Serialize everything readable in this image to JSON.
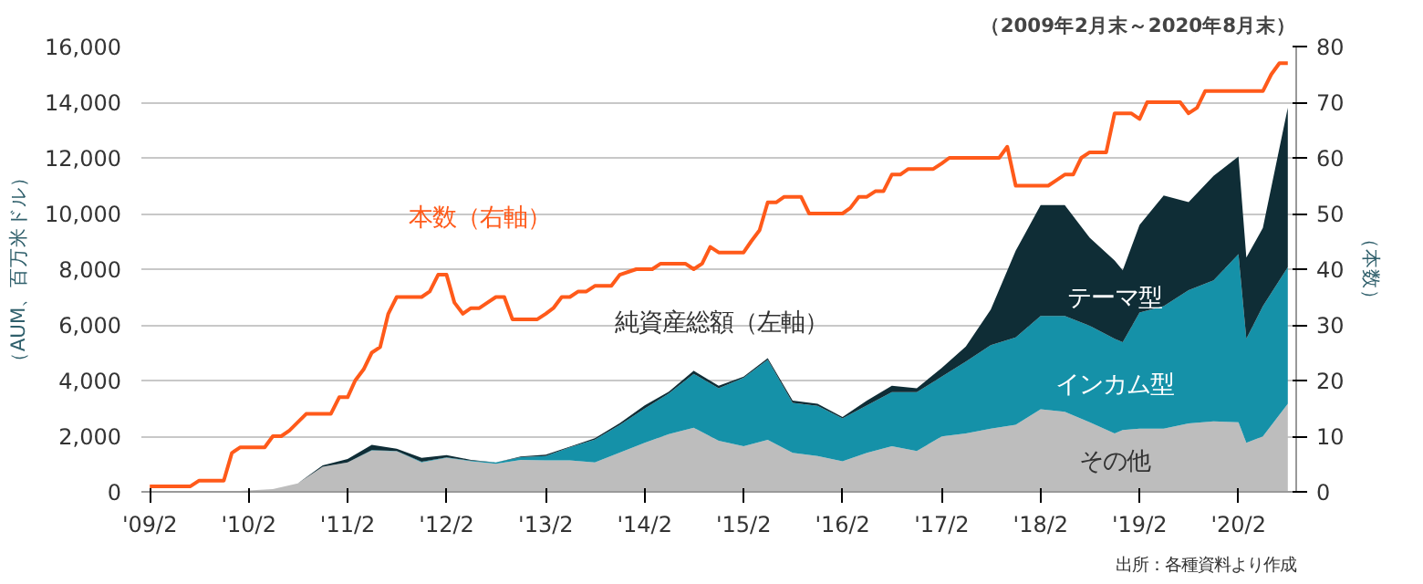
{
  "chart_data": {
    "type": "area",
    "stacked": true,
    "title": "（2009年2月末～2020年8月末）",
    "ylabel": "（AUM、百万米ドル）",
    "y2label": "（本数）",
    "annotations": [
      "純資産総額（左軸）",
      "出所：各種資料より作成"
    ],
    "x": [
      "2009-02",
      "2009-05",
      "2009-08",
      "2009-11",
      "2010-02",
      "2010-05",
      "2010-08",
      "2010-11",
      "2011-02",
      "2011-05",
      "2011-08",
      "2011-11",
      "2012-02",
      "2012-05",
      "2012-08",
      "2012-11",
      "2013-02",
      "2013-05",
      "2013-08",
      "2013-11",
      "2014-02",
      "2014-05",
      "2014-08",
      "2014-11",
      "2015-02",
      "2015-05",
      "2015-08",
      "2015-11",
      "2016-02",
      "2016-05",
      "2016-08",
      "2016-11",
      "2017-02",
      "2017-05",
      "2017-08",
      "2017-11",
      "2018-02",
      "2018-05",
      "2018-08",
      "2018-11",
      "2018-12",
      "2019-02",
      "2019-05",
      "2019-08",
      "2019-11",
      "2020-02",
      "2020-03",
      "2020-05",
      "2020-08"
    ],
    "series": [
      {
        "name": "その他",
        "color": "#bdbdbd",
        "values": [
          0,
          0,
          0,
          0,
          50,
          100,
          300,
          900,
          1060,
          1480,
          1460,
          1060,
          1220,
          1100,
          1010,
          1150,
          1130,
          1130,
          1060,
          1410,
          1760,
          2070,
          2300,
          1840,
          1640,
          1870,
          1400,
          1290,
          1100,
          1400,
          1640,
          1470,
          1990,
          2100,
          2270,
          2410,
          2970,
          2880,
          2500,
          2100,
          2220,
          2270,
          2270,
          2460,
          2530,
          2500,
          1760,
          1990,
          3160
        ]
      },
      {
        "name": "インカム型",
        "color": "#1591a8",
        "values": [
          0,
          0,
          0,
          0,
          0,
          0,
          0,
          0,
          0,
          20,
          10,
          20,
          20,
          20,
          50,
          100,
          160,
          470,
          820,
          990,
          1230,
          1460,
          1940,
          1880,
          2460,
          2880,
          1800,
          1800,
          1540,
          1710,
          1940,
          2110,
          2150,
          2580,
          3000,
          3140,
          3350,
          3440,
          3470,
          3400,
          3160,
          4170,
          4400,
          4790,
          5070,
          6040,
          3740,
          4680,
          4910
        ]
      },
      {
        "name": "テーマ型",
        "color": "#0f2d36",
        "values": [
          0,
          0,
          0,
          0,
          0,
          0,
          0,
          50,
          120,
          190,
          80,
          140,
          80,
          30,
          0,
          20,
          50,
          20,
          50,
          70,
          120,
          70,
          110,
          90,
          40,
          50,
          80,
          70,
          50,
          170,
          230,
          140,
          310,
          540,
          1280,
          3110,
          3980,
          3980,
          3160,
          2810,
          2580,
          3150,
          3980,
          3160,
          3750,
          3510,
          2920,
          2810,
          5730
        ]
      },
      {
        "name": "本数（右軸）",
        "type": "line",
        "axis": "y2",
        "color": "#ff5a1a",
        "x": [
          "2009-02",
          "2009-07",
          "2009-08",
          "2009-11",
          "2009-12",
          "2010-01",
          "2010-04",
          "2010-05",
          "2010-06",
          "2010-07",
          "2010-09",
          "2010-12",
          "2011-01",
          "2011-02",
          "2011-03",
          "2011-04",
          "2011-05",
          "2011-06",
          "2011-07",
          "2011-08",
          "2011-11",
          "2011-12",
          "2012-01",
          "2012-02",
          "2012-03",
          "2012-04",
          "2012-05",
          "2012-06",
          "2012-07",
          "2012-08",
          "2012-09",
          "2012-10",
          "2013-01",
          "2013-02",
          "2013-03",
          "2013-04",
          "2013-05",
          "2013-06",
          "2013-07",
          "2013-08",
          "2013-10",
          "2013-11",
          "2014-01",
          "2014-03",
          "2014-04",
          "2014-07",
          "2014-08",
          "2014-09",
          "2014-10",
          "2014-11",
          "2015-02",
          "2015-03",
          "2015-04",
          "2015-05",
          "2015-06",
          "2015-07",
          "2015-09",
          "2015-10",
          "2016-02",
          "2016-03",
          "2016-04",
          "2016-05",
          "2016-06",
          "2016-07",
          "2016-08",
          "2016-09",
          "2016-10",
          "2017-01",
          "2017-02",
          "2017-03",
          "2017-09",
          "2017-10",
          "2017-11",
          "2018-03",
          "2018-04",
          "2018-05",
          "2018-06",
          "2018-07",
          "2018-08",
          "2018-10",
          "2018-11",
          "2019-01",
          "2019-02",
          "2019-03",
          "2019-07",
          "2019-08",
          "2019-09",
          "2019-10",
          "2020-04",
          "2020-05",
          "2020-06",
          "2020-07",
          "2020-08"
        ],
        "values": [
          1,
          1,
          2,
          2,
          7,
          8,
          8,
          10,
          10,
          11,
          14,
          14,
          17,
          17,
          20,
          22,
          25,
          26,
          32,
          35,
          35,
          36,
          39,
          39,
          34,
          32,
          33,
          33,
          34,
          35,
          35,
          31,
          31,
          32,
          33,
          35,
          35,
          36,
          36,
          37,
          37,
          39,
          40,
          40,
          41,
          41,
          40,
          41,
          44,
          43,
          43,
          45,
          47,
          52,
          52,
          53,
          53,
          50,
          50,
          51,
          53,
          53,
          54,
          54,
          57,
          57,
          58,
          58,
          59,
          60,
          60,
          62,
          55,
          55,
          56,
          57,
          57,
          60,
          61,
          61,
          68,
          68,
          67,
          70,
          70,
          68,
          69,
          72,
          72,
          72,
          75,
          77,
          77
        ]
      }
    ],
    "xlim": [
      "2009-01",
      "2020-09"
    ],
    "xticks": [
      {
        "value": "2009-02",
        "label": "'09/2"
      },
      {
        "value": "2010-02",
        "label": "'10/2"
      },
      {
        "value": "2011-02",
        "label": "'11/2"
      },
      {
        "value": "2012-02",
        "label": "'12/2"
      },
      {
        "value": "2013-02",
        "label": "'13/2"
      },
      {
        "value": "2014-02",
        "label": "'14/2"
      },
      {
        "value": "2015-02",
        "label": "'15/2"
      },
      {
        "value": "2016-02",
        "label": "'16/2"
      },
      {
        "value": "2017-02",
        "label": "'17/2"
      },
      {
        "value": "2018-02",
        "label": "'18/2"
      },
      {
        "value": "2019-02",
        "label": "'19/2"
      },
      {
        "value": "2020-02",
        "label": "'20/2"
      }
    ],
    "ylim": [
      0,
      16000
    ],
    "yticks": [
      0,
      {
        "value": 2000,
        "label": "2,000"
      },
      {
        "value": 4000,
        "label": "4,000"
      },
      {
        "value": 6000,
        "label": "6,000"
      },
      {
        "value": 8000,
        "label": "8,000"
      },
      {
        "value": 10000,
        "label": "10,000"
      },
      {
        "value": 12000,
        "label": "12,000"
      },
      {
        "value": 14000,
        "label": "14,000"
      },
      {
        "value": 16000,
        "label": "16,000"
      }
    ],
    "y2lim": [
      0,
      80
    ],
    "y2ticks": [
      0,
      10,
      20,
      30,
      40,
      50,
      60,
      70,
      80
    ],
    "grid": "y",
    "line_style": "solid",
    "marker": "none"
  }
}
